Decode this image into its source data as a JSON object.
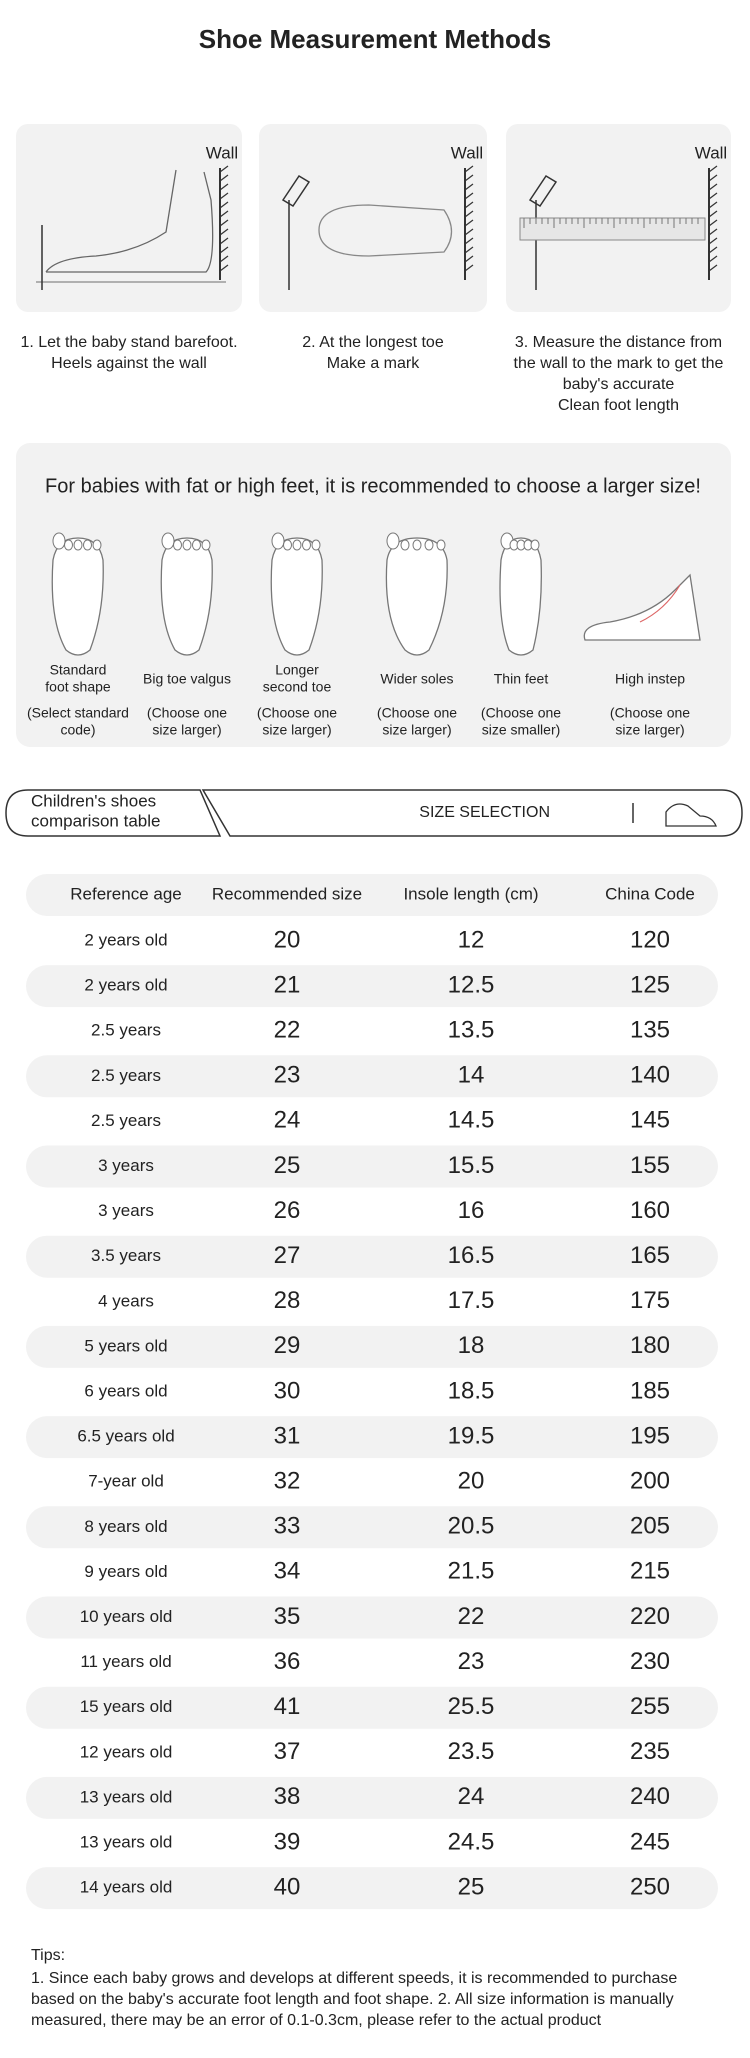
{
  "header": {
    "title": "Shoe Measurement Methods"
  },
  "steps": [
    {
      "wall": "Wall",
      "caption": [
        "1. Let the baby stand barefoot.",
        "Heels against the wall"
      ]
    },
    {
      "wall": "Wall",
      "caption": [
        "2. At the longest toe",
        "Make a mark"
      ]
    },
    {
      "wall": "Wall",
      "caption": [
        "3. Measure the distance from",
        "the wall to the mark to get the",
        "baby's accurate",
        "Clean foot length"
      ]
    }
  ],
  "foot_types": {
    "title": "For babies with fat or high feet, it is recommended to choose a larger size!",
    "items": [
      {
        "label": [
          "Standard",
          "foot shape"
        ],
        "note": [
          "(Select standard",
          "code)"
        ]
      },
      {
        "label": [
          "Big toe valgus"
        ],
        "note": [
          "(Choose one",
          "size larger)"
        ]
      },
      {
        "label": [
          "Longer",
          "second toe"
        ],
        "note": [
          "(Choose one",
          "size larger)"
        ]
      },
      {
        "label": [
          "Wider soles"
        ],
        "note": [
          "(Choose one",
          "size larger)"
        ]
      },
      {
        "label": [
          "Thin feet"
        ],
        "note": [
          "(Choose one",
          "size smaller)"
        ]
      },
      {
        "label": [
          "High instep"
        ],
        "note": [
          "(Choose one",
          "size larger)"
        ]
      }
    ]
  },
  "banner": {
    "tab": [
      "Children's shoes",
      "comparison table"
    ],
    "right": "SIZE SELECTION"
  },
  "table": {
    "columns": [
      "Reference age",
      "Recommended size",
      "Insole length (cm)",
      "China Code"
    ],
    "rows": [
      [
        "2 years old",
        "20",
        "12",
        "120"
      ],
      [
        "2 years old",
        "21",
        "12.5",
        "125"
      ],
      [
        "2.5 years",
        "22",
        "13.5",
        "135"
      ],
      [
        "2.5 years",
        "23",
        "14",
        "140"
      ],
      [
        "2.5 years",
        "24",
        "14.5",
        "145"
      ],
      [
        "3 years",
        "25",
        "15.5",
        "155"
      ],
      [
        "3 years",
        "26",
        "16",
        "160"
      ],
      [
        "3.5 years",
        "27",
        "16.5",
        "165"
      ],
      [
        "4 years",
        "28",
        "17.5",
        "175"
      ],
      [
        "5 years old",
        "29",
        "18",
        "180"
      ],
      [
        "6 years old",
        "30",
        "18.5",
        "185"
      ],
      [
        "6.5 years old",
        "31",
        "19.5",
        "195"
      ],
      [
        "7-year old",
        "32",
        "20",
        "200"
      ],
      [
        "8 years old",
        "33",
        "20.5",
        "205"
      ],
      [
        "9 years old",
        "34",
        "21.5",
        "215"
      ],
      [
        "10 years old",
        "35",
        "22",
        "220"
      ],
      [
        "11 years old",
        "36",
        "23",
        "230"
      ],
      [
        "15 years old",
        "41",
        "25.5",
        "255"
      ],
      [
        "12 years old",
        "37",
        "23.5",
        "235"
      ],
      [
        "13 years old",
        "38",
        "24",
        "240"
      ],
      [
        "13 years old",
        "39",
        "24.5",
        "245"
      ],
      [
        "14 years old",
        "40",
        "25",
        "250"
      ]
    ]
  },
  "tips": {
    "heading": "Tips:",
    "lines": [
      "1. Since each baby grows and develops at different speeds, it is recommended to purchase",
      "based on the baby's accurate foot length and foot shape. 2. All size information is manually",
      "measured, there may be an error of 0.1-0.3cm, please refer to the actual product"
    ]
  }
}
